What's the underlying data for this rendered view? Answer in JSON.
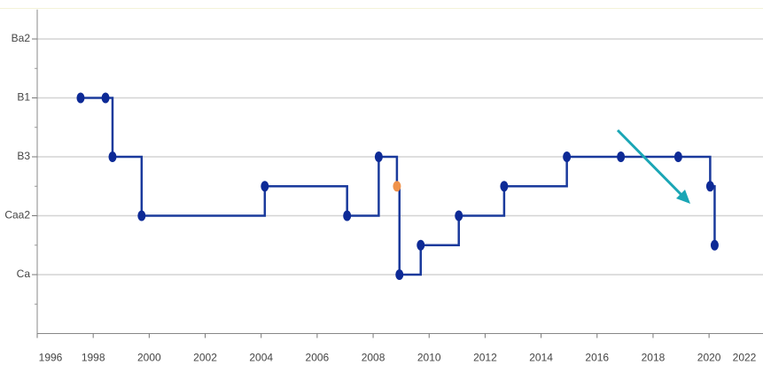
{
  "chart_data": {
    "type": "step",
    "x": [
      1997.55,
      1998.44,
      1998.69,
      1999.73,
      2004.13,
      2007.07,
      2008.2,
      2008.85,
      2008.94,
      2009.7,
      2011.06,
      2012.68,
      2014.92,
      2016.85,
      2018.9,
      2020.04,
      2020.2
    ],
    "values": [
      10,
      10,
      8,
      6,
      7,
      6,
      8,
      7,
      4,
      5,
      6,
      7,
      8,
      8,
      8,
      7,
      5
    ],
    "color": "#1a3a9c",
    "point_colors": [
      "#0d2a96",
      "#0d2a96",
      "#0d2a96",
      "#0d2a96",
      "#0d2a96",
      "#0d2a96",
      "#0d2a96",
      "#f0924a",
      "#0d2a96",
      "#0d2a96",
      "#0d2a96",
      "#0d2a96",
      "#0d2a96",
      "#0d2a96",
      "#0d2a96",
      "#0d2a96",
      "#0d2a96"
    ],
    "xlim": [
      1996,
      2022
    ],
    "xticks": [
      1996,
      1998,
      2000,
      2002,
      2004,
      2006,
      2008,
      2010,
      2012,
      2014,
      2016,
      2018,
      2020,
      2022
    ],
    "ylim": [
      2,
      13
    ],
    "yticks": [
      {
        "value": 12,
        "label": "Ba2"
      },
      {
        "value": 10,
        "label": "B1"
      },
      {
        "value": 8,
        "label": "B3"
      },
      {
        "value": 6,
        "label": "Caa2"
      },
      {
        "value": 4,
        "label": "Ca"
      }
    ],
    "yminor_ticks": [
      11,
      9,
      7,
      5,
      3
    ],
    "grid": true
  }
}
